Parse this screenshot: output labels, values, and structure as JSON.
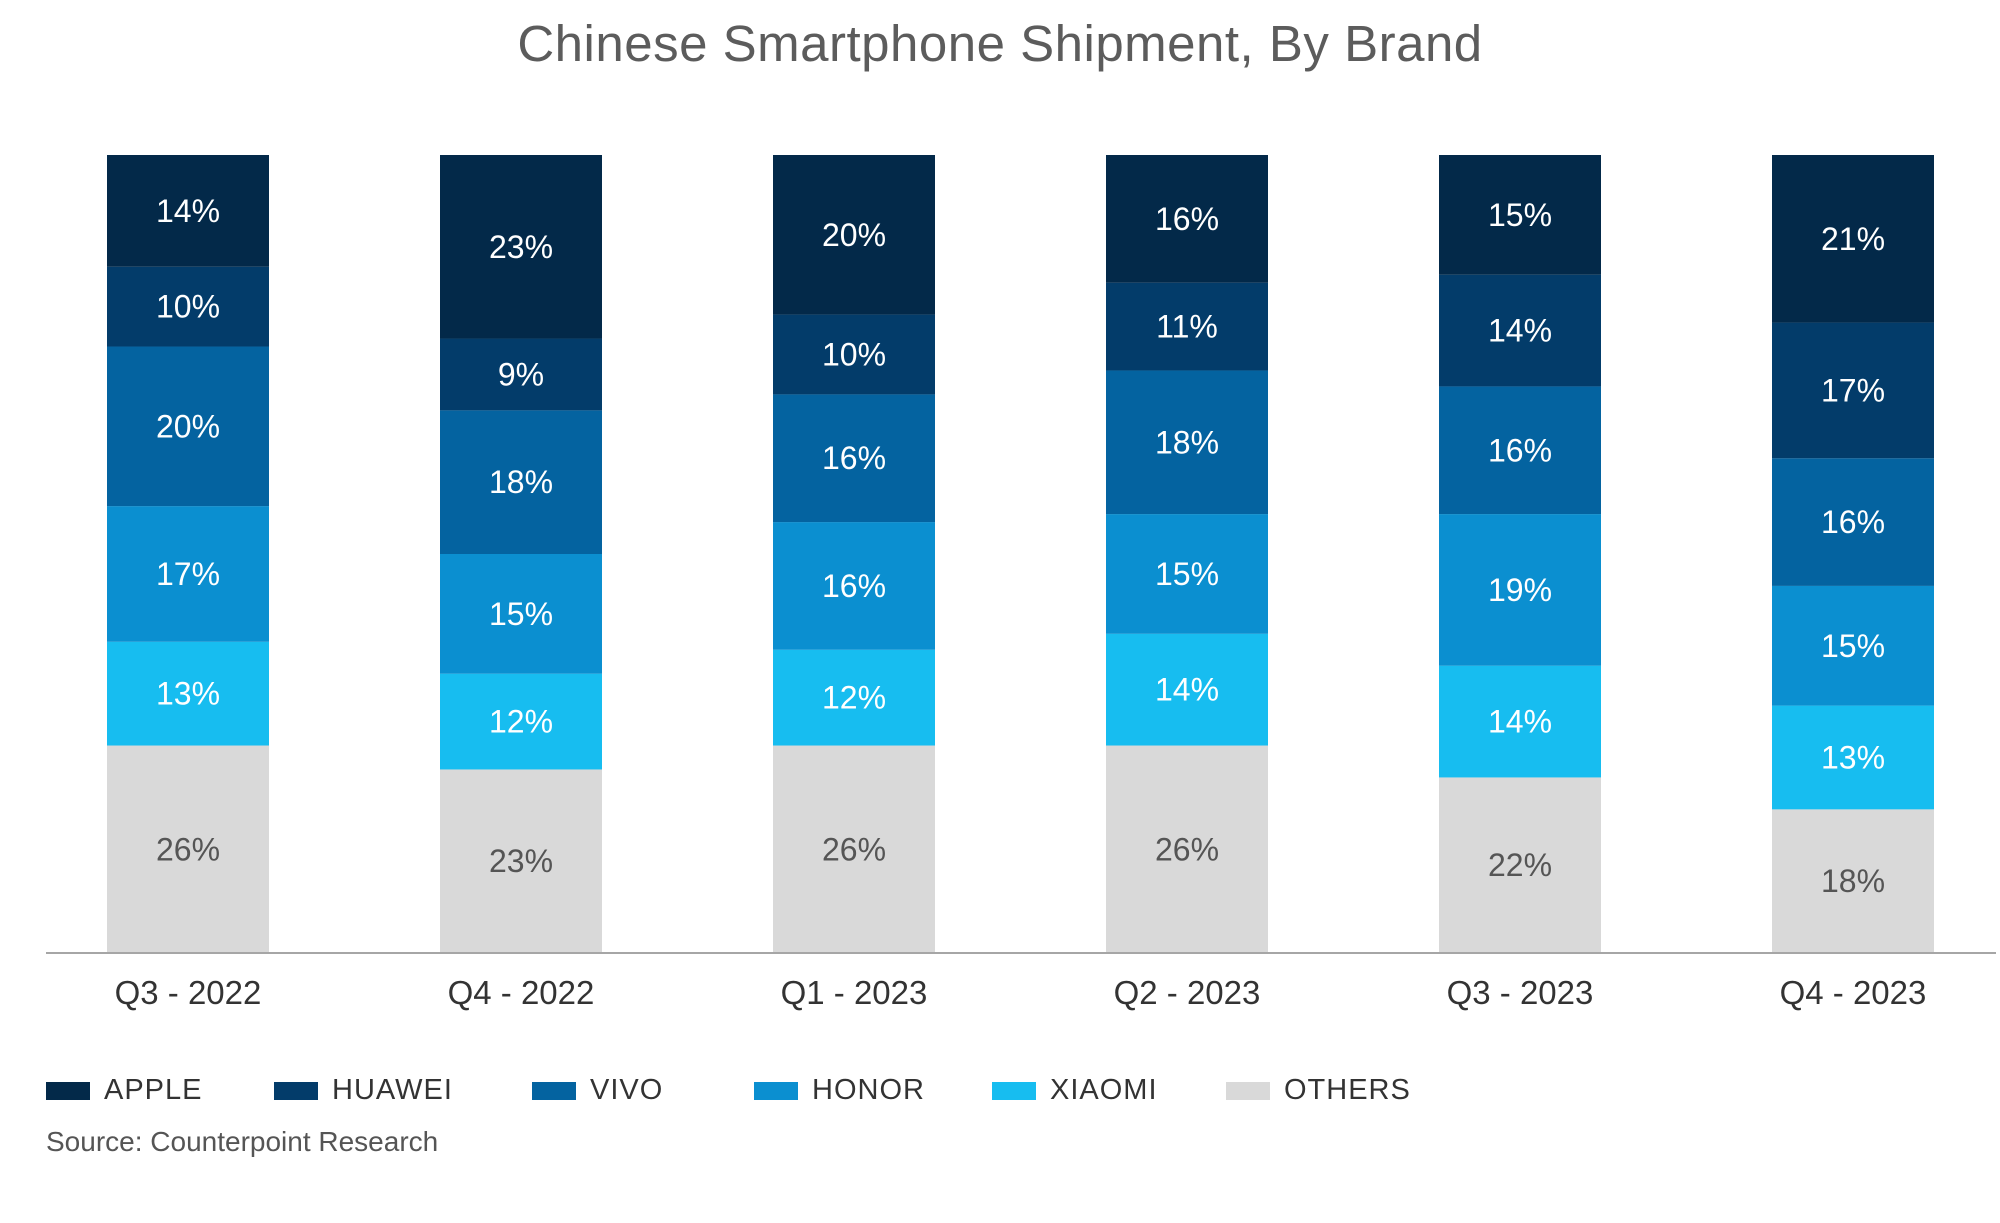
{
  "title": "Chinese Smartphone Shipment, By Brand",
  "source": "Source: Counterpoint Research",
  "chart_data": {
    "type": "bar",
    "stacked": true,
    "title": "Chinese Smartphone Shipment, By Brand",
    "xlabel": "",
    "ylabel": "",
    "categories": [
      "Q3 - 2022",
      "Q4 - 2022",
      "Q1 - 2023",
      "Q2 - 2023",
      "Q3 - 2023",
      "Q4 - 2023"
    ],
    "series": [
      {
        "name": "OTHERS",
        "color": "#d9d9d9",
        "label_color": "#555555",
        "values": [
          26,
          23,
          26,
          26,
          22,
          18
        ]
      },
      {
        "name": "XIAOMI",
        "color": "#17bdf0",
        "label_color": "#ffffff",
        "values": [
          13,
          12,
          12,
          14,
          14,
          13
        ]
      },
      {
        "name": "HONOR",
        "color": "#0b8fd0",
        "label_color": "#ffffff",
        "values": [
          17,
          15,
          16,
          15,
          19,
          15
        ]
      },
      {
        "name": "VIVO",
        "color": "#0463a0",
        "label_color": "#ffffff",
        "values": [
          20,
          18,
          16,
          18,
          16,
          16
        ]
      },
      {
        "name": "HUAWEI",
        "color": "#033c6a",
        "label_color": "#ffffff",
        "values": [
          10,
          9,
          10,
          11,
          14,
          17
        ]
      },
      {
        "name": "APPLE",
        "color": "#032949",
        "label_color": "#ffffff",
        "values": [
          14,
          23,
          20,
          16,
          15,
          21
        ]
      }
    ],
    "legend": {
      "position": "bottom-left",
      "order": [
        "APPLE",
        "HUAWEI",
        "VIVO",
        "HONOR",
        "XIAOMI",
        "OTHERS"
      ]
    },
    "grid": false,
    "ylim": [
      0,
      100
    ]
  }
}
